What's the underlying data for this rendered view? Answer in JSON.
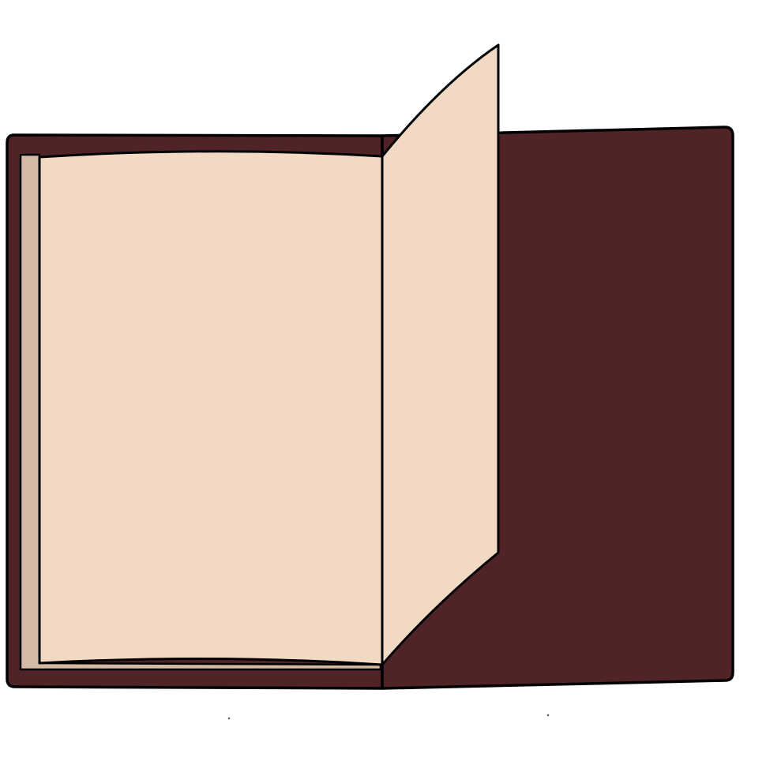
{
  "illustration": {
    "subject": "open-book-icon",
    "colors": {
      "background": "#ffffff",
      "cover": "#502426",
      "page": "#f2d9c3",
      "page_stack": "#d4b9a5",
      "outline": "#000000"
    }
  }
}
